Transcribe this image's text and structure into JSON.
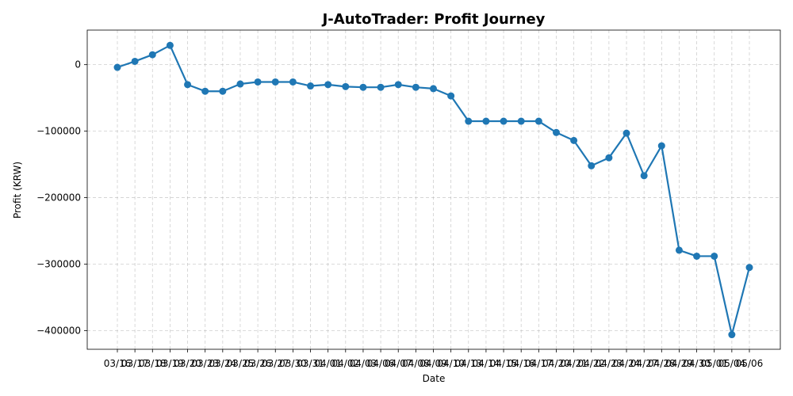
{
  "chart_data": {
    "type": "line",
    "title": "J-AutoTrader: Profit Journey",
    "xlabel": "Date",
    "ylabel": "Profit (KRW)",
    "categories": [
      "03/16",
      "03/17",
      "03/18",
      "03/19",
      "03/20",
      "03/23",
      "03/24",
      "03/25",
      "03/26",
      "03/27",
      "03/30",
      "03/31",
      "04/01",
      "04/02",
      "04/03",
      "04/06",
      "04/07",
      "04/08",
      "04/09",
      "04/10",
      "04/13",
      "04/14",
      "04/15",
      "04/16",
      "04/17",
      "04/20",
      "04/21",
      "04/22",
      "04/23",
      "04/24",
      "04/27",
      "04/28",
      "04/29",
      "04/30",
      "05/01",
      "05/04",
      "05/06"
    ],
    "values": [
      -4000,
      5000,
      15000,
      29000,
      -30000,
      -40000,
      -40000,
      -29000,
      -26000,
      -26000,
      -26000,
      -32000,
      -30000,
      -33000,
      -34000,
      -34000,
      -30000,
      -34000,
      -36000,
      -47000,
      -85000,
      -85000,
      -85000,
      -85000,
      -85000,
      -102000,
      -114000,
      -152000,
      -140000,
      -103000,
      -167000,
      -122000,
      -279000,
      -288000,
      -288000,
      -406000,
      -305000
    ],
    "yticks": [
      0,
      -100000,
      -200000,
      -300000,
      -400000
    ],
    "ylim": [
      -428000,
      52000
    ],
    "grid": true,
    "line_color": "#1f77b4"
  }
}
